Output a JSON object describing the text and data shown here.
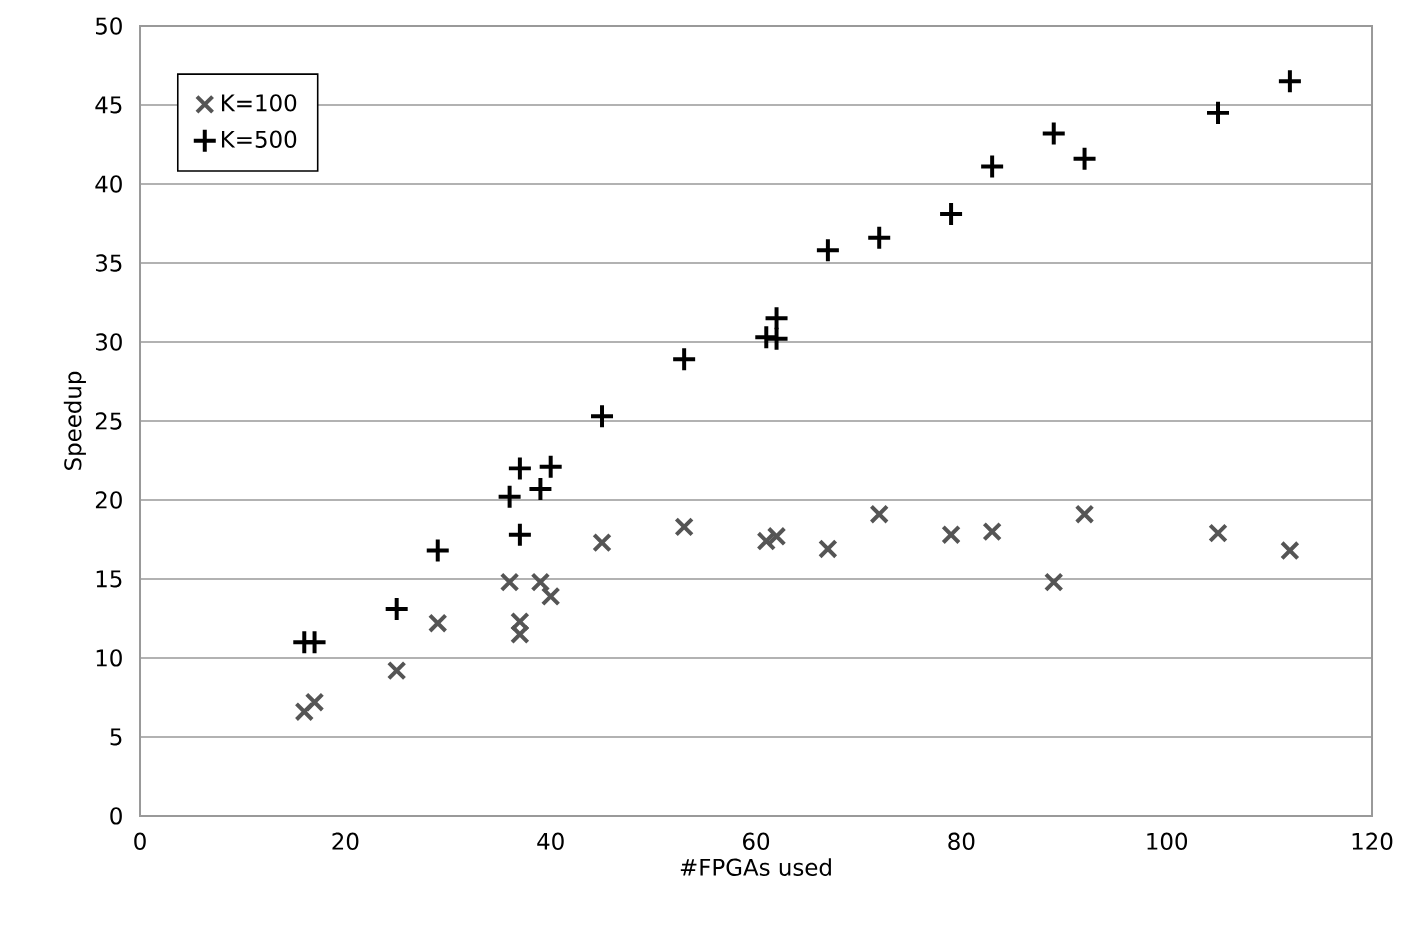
{
  "chart_data": {
    "type": "scatter",
    "xlabel": "#FPGAs used",
    "ylabel": "Speedup",
    "xlim": [
      0,
      120
    ],
    "xticks": [
      0,
      20,
      40,
      60,
      80,
      100,
      120
    ],
    "ylim": [
      0,
      50
    ],
    "yticks": [
      0,
      5,
      10,
      15,
      20,
      25,
      30,
      35,
      40,
      45,
      50
    ],
    "grid": "y",
    "legend": "top left",
    "series": [
      {
        "name": "K=100",
        "color": "#555555",
        "marker": "cross",
        "x": [
          16,
          17,
          25,
          29,
          36,
          37,
          37,
          39,
          40,
          45,
          53,
          61,
          62,
          67,
          72,
          79,
          83,
          89,
          92,
          105,
          112
        ],
        "values": [
          6.6,
          7.2,
          9.2,
          12.2,
          14.8,
          12.3,
          11.5,
          14.8,
          13.9,
          17.3,
          18.3,
          17.4,
          17.7,
          16.9,
          19.1,
          17.8,
          18.0,
          14.8,
          19.1,
          17.9,
          16.8
        ]
      },
      {
        "name": "K=500",
        "color": "#000000",
        "marker": "plus",
        "x": [
          16,
          17,
          25,
          29,
          36,
          37,
          37,
          39,
          40,
          45,
          53,
          61,
          62,
          62,
          67,
          72,
          79,
          83,
          89,
          92,
          105,
          112
        ],
        "values": [
          11,
          11,
          13.1,
          16.8,
          20.2,
          22,
          17.8,
          20.7,
          22.1,
          25.3,
          28.9,
          30.3,
          31.5,
          30.2,
          35.8,
          36.6,
          38.1,
          41.1,
          43.2,
          41.6,
          44.5,
          46.5
        ]
      }
    ]
  }
}
